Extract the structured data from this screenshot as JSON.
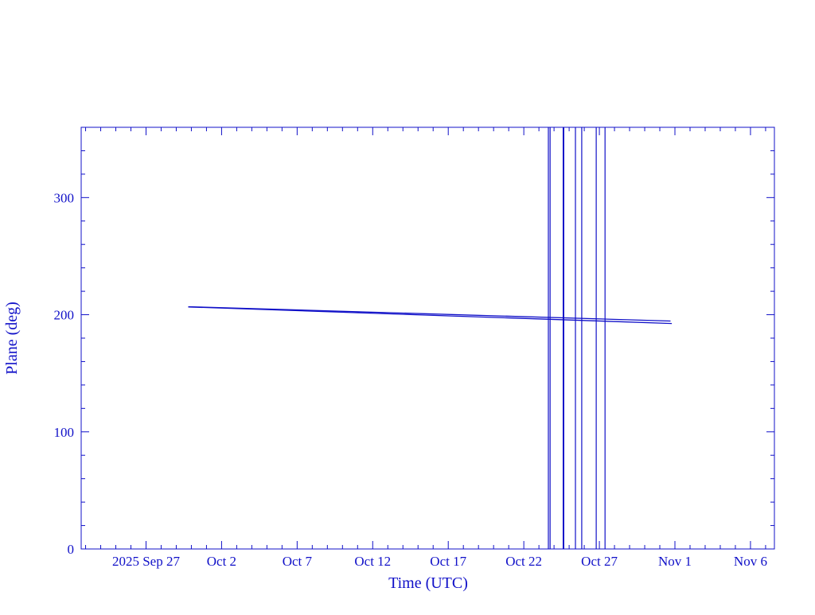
{
  "chart_data": {
    "type": "line",
    "title": "",
    "xlabel": "Time (UTC)",
    "ylabel": "Plane (deg)",
    "xlim": [
      "2025-09-22T17:00",
      "2025-11-07T14:00"
    ],
    "ylim": [
      0,
      360
    ],
    "x_ticks": [
      {
        "date": "2025-09-27",
        "label": "2025 Sep 27"
      },
      {
        "date": "2025-10-02",
        "label": "Oct  2"
      },
      {
        "date": "2025-10-07",
        "label": "Oct  7"
      },
      {
        "date": "2025-10-12",
        "label": "Oct 12"
      },
      {
        "date": "2025-10-17",
        "label": "Oct 17"
      },
      {
        "date": "2025-10-22",
        "label": "Oct 22"
      },
      {
        "date": "2025-10-27",
        "label": "Oct 27"
      },
      {
        "date": "2025-11-01",
        "label": "Nov  1"
      },
      {
        "date": "2025-11-06",
        "label": "Nov  6"
      }
    ],
    "y_ticks": [
      0,
      100,
      200,
      300
    ],
    "grid": false,
    "color": "#1010c8",
    "series": [
      {
        "x": [
          "2025-09-29T19:00",
          "2025-10-31T17:00"
        ],
        "y": [
          206.8,
          194.6
        ]
      },
      {
        "x": [
          "2025-09-29T19:00",
          "2025-10-31T19:00"
        ],
        "y": [
          206.6,
          192.5
        ]
      }
    ],
    "vertical_lines": [
      "2025-10-23T15:00",
      "2025-10-23T17:45",
      "2025-10-24T15:00",
      "2025-10-25T10:00",
      "2025-10-25T20:00",
      "2025-10-26T19:00",
      "2025-10-27T09:00"
    ]
  }
}
